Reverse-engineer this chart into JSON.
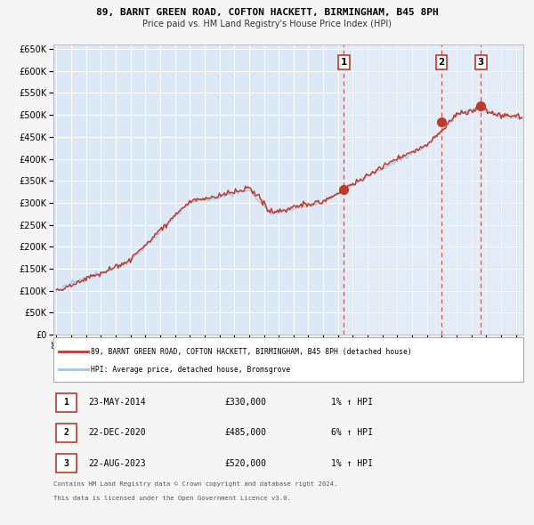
{
  "title": "89, BARNT GREEN ROAD, COFTON HACKETT, BIRMINGHAM, B45 8PH",
  "subtitle": "Price paid vs. HM Land Registry's House Price Index (HPI)",
  "hpi_color": "#a8c4e0",
  "price_color": "#c0392b",
  "shade_color": "#ddeeff",
  "background_color": "#f5f5f5",
  "plot_bg_color": "#dce8f5",
  "grid_color": "#ffffff",
  "ylim": [
    0,
    660000
  ],
  "yticks": [
    0,
    50000,
    100000,
    150000,
    200000,
    250000,
    300000,
    350000,
    400000,
    450000,
    500000,
    550000,
    600000,
    650000
  ],
  "xlim_start": 1994.8,
  "xlim_end": 2026.5,
  "sale_dates": [
    2014.39,
    2020.98,
    2023.64
  ],
  "sale_prices": [
    330000,
    485000,
    520000
  ],
  "sale_labels": [
    "1",
    "2",
    "3"
  ],
  "sale_info": [
    [
      "1",
      "23-MAY-2014",
      "£330,000",
      "1% ↑ HPI"
    ],
    [
      "2",
      "22-DEC-2020",
      "£485,000",
      "6% ↑ HPI"
    ],
    [
      "3",
      "22-AUG-2023",
      "£520,000",
      "1% ↑ HPI"
    ]
  ],
  "legend_line1": "89, BARNT GREEN ROAD, COFTON HACKETT, BIRMINGHAM, B45 8PH (detached house)",
  "legend_line2": "HPI: Average price, detached house, Bromsgrove",
  "footer1": "Contains HM Land Registry data © Crown copyright and database right 2024.",
  "footer2": "This data is licensed under the Open Government Licence v3.0."
}
